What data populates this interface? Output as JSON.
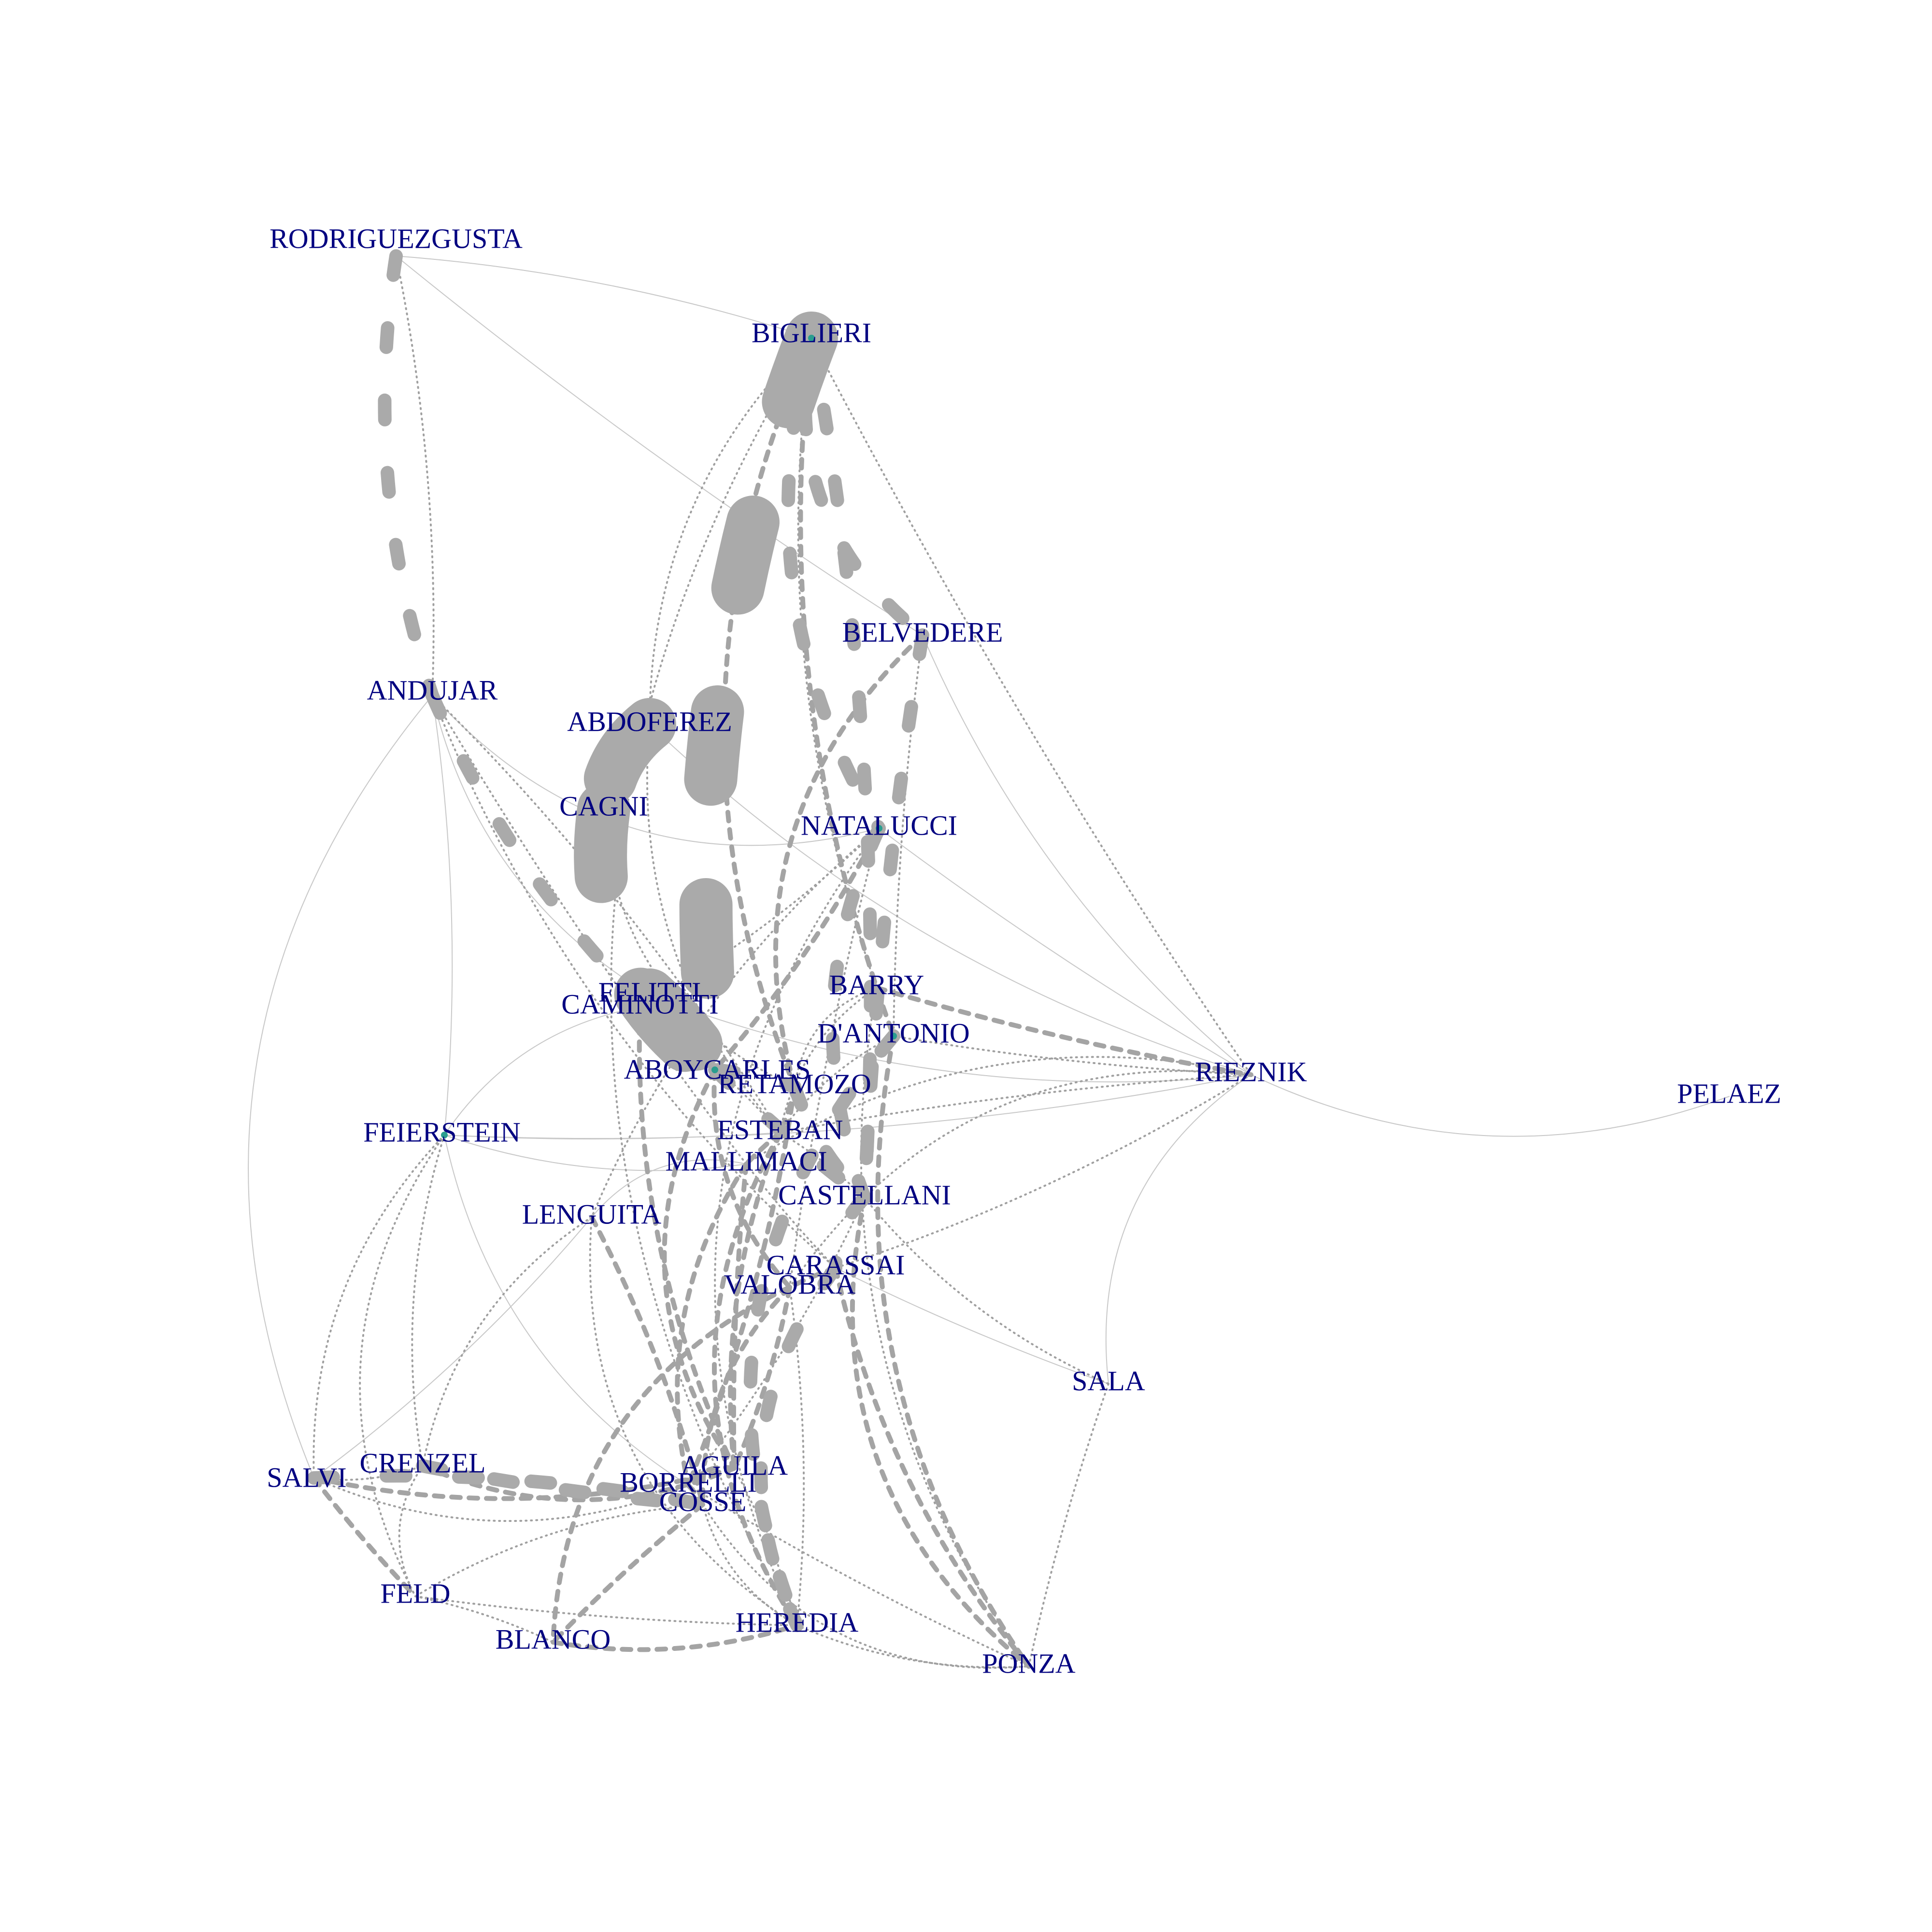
{
  "nodes": [
    {
      "id": "RODRIGUEZGUSTA",
      "label": "RODRIGUEZGUSTA"
    },
    {
      "id": "BIGLIERI",
      "label": "BIGLIERI"
    },
    {
      "id": "BELVEDERE",
      "label": "BELVEDERE"
    },
    {
      "id": "ANDUJAR",
      "label": "ANDUJAR"
    },
    {
      "id": "ABDOFEREZ",
      "label": "ABDOFEREZ"
    },
    {
      "id": "CAGNI",
      "label": "CAGNI"
    },
    {
      "id": "NATALUCCI",
      "label": "NATALUCCI"
    },
    {
      "id": "BARRY",
      "label": "BARRY"
    },
    {
      "id": "FELITTI",
      "label": "FELITTI"
    },
    {
      "id": "CAMINOTTI",
      "label": "CAMINOTTI"
    },
    {
      "id": "D'ANTONIO",
      "label": "D'ANTONIO"
    },
    {
      "id": "RIEZNIK",
      "label": "RIEZNIK"
    },
    {
      "id": "PELAEZ",
      "label": "PELAEZ"
    },
    {
      "id": "ABOYCARLES",
      "label": "ABOYCARLES"
    },
    {
      "id": "RETAMOZO",
      "label": "RETAMOZO"
    },
    {
      "id": "FEIERSTEIN",
      "label": "FEIERSTEIN"
    },
    {
      "id": "ESTEBAN",
      "label": "ESTEBAN"
    },
    {
      "id": "MALLIMACI",
      "label": "MALLIMACI"
    },
    {
      "id": "CASTELLANI",
      "label": "CASTELLANI"
    },
    {
      "id": "LENGUITA",
      "label": "LENGUITA"
    },
    {
      "id": "CARASSAI",
      "label": "CARASSAI"
    },
    {
      "id": "VALOBRA",
      "label": "VALOBRA"
    },
    {
      "id": "SALA",
      "label": "SALA"
    },
    {
      "id": "SALVI",
      "label": "SALVI"
    },
    {
      "id": "CRENZEL",
      "label": "CRENZEL"
    },
    {
      "id": "AGUILA",
      "label": "AGUILA"
    },
    {
      "id": "BORRELLI",
      "label": "BORRELLI"
    },
    {
      "id": "COSSE",
      "label": "COSSE"
    },
    {
      "id": "FELD",
      "label": "FELD"
    },
    {
      "id": "BLANCO",
      "label": "BLANCO"
    },
    {
      "id": "HEREDIA",
      "label": "HEREDIA"
    },
    {
      "id": "PONZA",
      "label": "PONZA"
    }
  ],
  "edges": [
    {
      "source": "RODRIGUEZGUSTA",
      "target": "ANDUJAR",
      "weight": "heavy"
    },
    {
      "source": "RODRIGUEZGUSTA",
      "target": "ANDUJAR",
      "weight": "dot"
    },
    {
      "source": "RODRIGUEZGUSTA",
      "target": "BIGLIERI",
      "weight": "thin"
    },
    {
      "source": "RODRIGUEZGUSTA",
      "target": "BELVEDERE",
      "weight": "thin"
    },
    {
      "source": "BIGLIERI",
      "target": "ABOYCARLES",
      "weight": "xheavy"
    },
    {
      "source": "BIGLIERI",
      "target": "NATALUCCI",
      "weight": "heavy"
    },
    {
      "source": "BIGLIERI",
      "target": "BELVEDERE",
      "weight": "heavy"
    },
    {
      "source": "BIGLIERI",
      "target": "CASTELLANI",
      "weight": "heavy"
    },
    {
      "source": "BIGLIERI",
      "target": "RIEZNIK",
      "weight": "dot"
    },
    {
      "source": "BIGLIERI",
      "target": "D'ANTONIO",
      "weight": "dash"
    },
    {
      "source": "BIGLIERI",
      "target": "RETAMOZO",
      "weight": "dash"
    },
    {
      "source": "BIGLIERI",
      "target": "BARRY",
      "weight": "dot"
    },
    {
      "source": "BIGLIERI",
      "target": "ABDOFEREZ",
      "weight": "dot"
    },
    {
      "source": "BIGLIERI",
      "target": "HEREDIA",
      "weight": "dot"
    },
    {
      "source": "BELVEDERE",
      "target": "RETAMOZO",
      "weight": "dash"
    },
    {
      "source": "BELVEDERE",
      "target": "CASTELLANI",
      "weight": "heavy"
    },
    {
      "source": "BELVEDERE",
      "target": "RIEZNIK",
      "weight": "thin"
    },
    {
      "source": "ANDUJAR",
      "target": "ABOYCARLES",
      "weight": "heavy"
    },
    {
      "source": "ANDUJAR",
      "target": "ESTEBAN",
      "weight": "dot"
    },
    {
      "source": "ANDUJAR",
      "target": "MALLIMACI",
      "weight": "dot"
    },
    {
      "source": "ANDUJAR",
      "target": "FELITTI",
      "weight": "thin"
    },
    {
      "source": "ANDUJAR",
      "target": "NATALUCCI",
      "weight": "thin"
    },
    {
      "source": "ANDUJAR",
      "target": "FEIERSTEIN",
      "weight": "thin"
    },
    {
      "source": "ANDUJAR",
      "target": "CARASSAI",
      "weight": "dot"
    },
    {
      "source": "ABDOFEREZ",
      "target": "CAGNI",
      "weight": "xheavy"
    },
    {
      "source": "ABDOFEREZ",
      "target": "ESTEBAN",
      "weight": "dot"
    },
    {
      "source": "CAGNI",
      "target": "ABOYCARLES",
      "weight": "xheavy"
    },
    {
      "source": "CAGNI",
      "target": "RETAMOZO",
      "weight": "dot"
    },
    {
      "source": "NATALUCCI",
      "target": "CASTELLANI",
      "weight": "heavy"
    },
    {
      "source": "NATALUCCI",
      "target": "ABOYCARLES",
      "weight": "dash"
    },
    {
      "source": "NATALUCCI",
      "target": "CAMINOTTI",
      "weight": "dot"
    },
    {
      "source": "NATALUCCI",
      "target": "RIEZNIK",
      "weight": "thin"
    },
    {
      "source": "NATALUCCI",
      "target": "VALOBRA",
      "weight": "dot"
    },
    {
      "source": "NATALUCCI",
      "target": "LENGUITA",
      "weight": "dot"
    },
    {
      "source": "BARRY",
      "target": "RIEZNIK",
      "weight": "dash"
    },
    {
      "source": "BARRY",
      "target": "ESTEBAN",
      "weight": "dot"
    },
    {
      "source": "BARRY",
      "target": "RETAMOZO",
      "weight": "dot"
    },
    {
      "source": "FELITTI",
      "target": "ABOYCARLES",
      "weight": "xheavy"
    },
    {
      "source": "FELITTI",
      "target": "RIEZNIK",
      "weight": "thin"
    },
    {
      "source": "CAMINOTTI",
      "target": "ESTEBAN",
      "weight": "dot"
    },
    {
      "source": "CAMINOTTI",
      "target": "AGUILA",
      "weight": "dash"
    },
    {
      "source": "D'ANTONIO",
      "target": "RIEZNIK",
      "weight": "dot"
    },
    {
      "source": "D'ANTONIO",
      "target": "HEREDIA",
      "weight": "heavy"
    },
    {
      "source": "D'ANTONIO",
      "target": "ESTEBAN",
      "weight": "dot"
    },
    {
      "source": "RIEZNIK",
      "target": "PELAEZ",
      "weight": "thin"
    },
    {
      "source": "RIEZNIK",
      "target": "MALLIMACI",
      "weight": "dot"
    },
    {
      "source": "RIEZNIK",
      "target": "VALOBRA",
      "weight": "dot"
    },
    {
      "source": "RIEZNIK",
      "target": "CARASSAI",
      "weight": "dot"
    },
    {
      "source": "RIEZNIK",
      "target": "SALA",
      "weight": "thin"
    },
    {
      "source": "RIEZNIK",
      "target": "ESTEBAN",
      "weight": "dot"
    },
    {
      "source": "RIEZNIK",
      "target": "FEIERSTEIN",
      "weight": "thin"
    },
    {
      "source": "ABOYCARLES",
      "target": "RETAMOZO",
      "weight": "heavy"
    },
    {
      "source": "ABOYCARLES",
      "target": "CASTELLANI",
      "weight": "heavy"
    },
    {
      "source": "ABOYCARLES",
      "target": "VALOBRA",
      "weight": "dash"
    },
    {
      "source": "ABOYCARLES",
      "target": "AGUILA",
      "weight": "dash"
    },
    {
      "source": "RETAMOZO",
      "target": "CASTELLANI",
      "weight": "heavy"
    },
    {
      "source": "RETAMOZO",
      "target": "ESTEBAN",
      "weight": "dash"
    },
    {
      "source": "FEIERSTEIN",
      "target": "CRENZEL",
      "weight": "dot"
    },
    {
      "source": "FEIERSTEIN",
      "target": "SALVI",
      "weight": "dot"
    },
    {
      "source": "FEIERSTEIN",
      "target": "FELD",
      "weight": "dot"
    },
    {
      "source": "FEIERSTEIN",
      "target": "ESTEBAN",
      "weight": "thin"
    },
    {
      "source": "FEIERSTEIN",
      "target": "MALLIMACI",
      "weight": "thin"
    },
    {
      "source": "FEIERSTEIN",
      "target": "BORRELLI",
      "weight": "thin"
    },
    {
      "source": "ESTEBAN",
      "target": "MALLIMACI",
      "weight": "dash"
    },
    {
      "source": "ESTEBAN",
      "target": "CASTELLANI",
      "weight": "dot"
    },
    {
      "source": "ESTEBAN",
      "target": "AGUILA",
      "weight": "dash"
    },
    {
      "source": "MALLIMACI",
      "target": "CARASSAI",
      "weight": "dot"
    },
    {
      "source": "MALLIMACI",
      "target": "LENGUITA",
      "weight": "thin"
    },
    {
      "source": "MALLIMACI",
      "target": "BORRELLI",
      "weight": "dash"
    },
    {
      "source": "CASTELLANI",
      "target": "CARASSAI",
      "weight": "heavy"
    },
    {
      "source": "CASTELLANI",
      "target": "PONZA",
      "weight": "dash"
    },
    {
      "source": "CASTELLANI",
      "target": "SALA",
      "weight": "dot"
    },
    {
      "source": "LENGUITA",
      "target": "SALVI",
      "weight": "thin"
    },
    {
      "source": "LENGUITA",
      "target": "CRENZEL",
      "weight": "dot"
    },
    {
      "source": "LENGUITA",
      "target": "COSSE",
      "weight": "dash"
    },
    {
      "source": "LENGUITA",
      "target": "HEREDIA",
      "weight": "dot"
    },
    {
      "source": "CARASSAI",
      "target": "VALOBRA",
      "weight": "dash"
    },
    {
      "source": "CARASSAI",
      "target": "HEREDIA",
      "weight": "heavy"
    },
    {
      "source": "CARASSAI",
      "target": "PONZA",
      "weight": "dash"
    },
    {
      "source": "CARASSAI",
      "target": "SALA",
      "weight": "thin"
    },
    {
      "source": "VALOBRA",
      "target": "COSSE",
      "weight": "dash"
    },
    {
      "source": "VALOBRA",
      "target": "HEREDIA",
      "weight": "dot"
    },
    {
      "source": "VALOBRA",
      "target": "BLANCO",
      "weight": "dash"
    },
    {
      "source": "VALOBRA",
      "target": "AGUILA",
      "weight": "dash"
    },
    {
      "source": "SALA",
      "target": "PONZA",
      "weight": "dot"
    },
    {
      "source": "SALVI",
      "target": "CRENZEL",
      "weight": "dot"
    },
    {
      "source": "SALVI",
      "target": "COSSE",
      "weight": "heavy"
    },
    {
      "source": "SALVI",
      "target": "FELD",
      "weight": "dash"
    },
    {
      "source": "SALVI",
      "target": "AGUILA",
      "weight": "dash"
    },
    {
      "source": "SALVI",
      "target": "BORRELLI",
      "weight": "dot"
    },
    {
      "source": "CRENZEL",
      "target": "COSSE",
      "weight": "heavy"
    },
    {
      "source": "CRENZEL",
      "target": "FELD",
      "weight": "dot"
    },
    {
      "source": "CRENZEL",
      "target": "AGUILA",
      "weight": "dash"
    },
    {
      "source": "AGUILA",
      "target": "BORRELLI",
      "weight": "dash"
    },
    {
      "source": "AGUILA",
      "target": "HEREDIA",
      "weight": "dot"
    },
    {
      "source": "BORRELLI",
      "target": "COSSE",
      "weight": "dash"
    },
    {
      "source": "BORRELLI",
      "target": "PONZA",
      "weight": "dot"
    },
    {
      "source": "COSSE",
      "target": "FELD",
      "weight": "dot"
    },
    {
      "source": "COSSE",
      "target": "BLANCO",
      "weight": "dash"
    },
    {
      "source": "COSSE",
      "target": "HEREDIA",
      "weight": "dot"
    },
    {
      "source": "COSSE",
      "target": "PONZA",
      "weight": "dot"
    },
    {
      "source": "FELD",
      "target": "BLANCO",
      "weight": "dot"
    },
    {
      "source": "FELD",
      "target": "HEREDIA",
      "weight": "dot"
    },
    {
      "source": "BLANCO",
      "target": "HEREDIA",
      "weight": "dash"
    },
    {
      "source": "HEREDIA",
      "target": "PONZA",
      "weight": "dot"
    },
    {
      "source": "D'ANTONIO",
      "target": "PONZA",
      "weight": "dash"
    },
    {
      "source": "BARRY",
      "target": "PONZA",
      "weight": "dot"
    },
    {
      "source": "NATALUCCI",
      "target": "HEREDIA",
      "weight": "dot"
    },
    {
      "source": "ABDOFEREZ",
      "target": "RIEZNIK",
      "weight": "thin"
    },
    {
      "source": "CAMINOTTI",
      "target": "FEIERSTEIN",
      "weight": "thin"
    },
    {
      "source": "ANDUJAR",
      "target": "SALVI",
      "weight": "thin"
    },
    {
      "source": "ESTEBAN",
      "target": "HEREDIA",
      "weight": "dash"
    },
    {
      "source": "RETAMOZO",
      "target": "BORRELLI",
      "weight": "dash"
    },
    {
      "source": "MALLIMACI",
      "target": "AGUILA",
      "weight": "dash"
    },
    {
      "source": "CASTELLANI",
      "target": "BORRELLI",
      "weight": "dot"
    },
    {
      "source": "BELVEDERE",
      "target": "D'ANTONIO",
      "weight": "dot"
    }
  ]
}
